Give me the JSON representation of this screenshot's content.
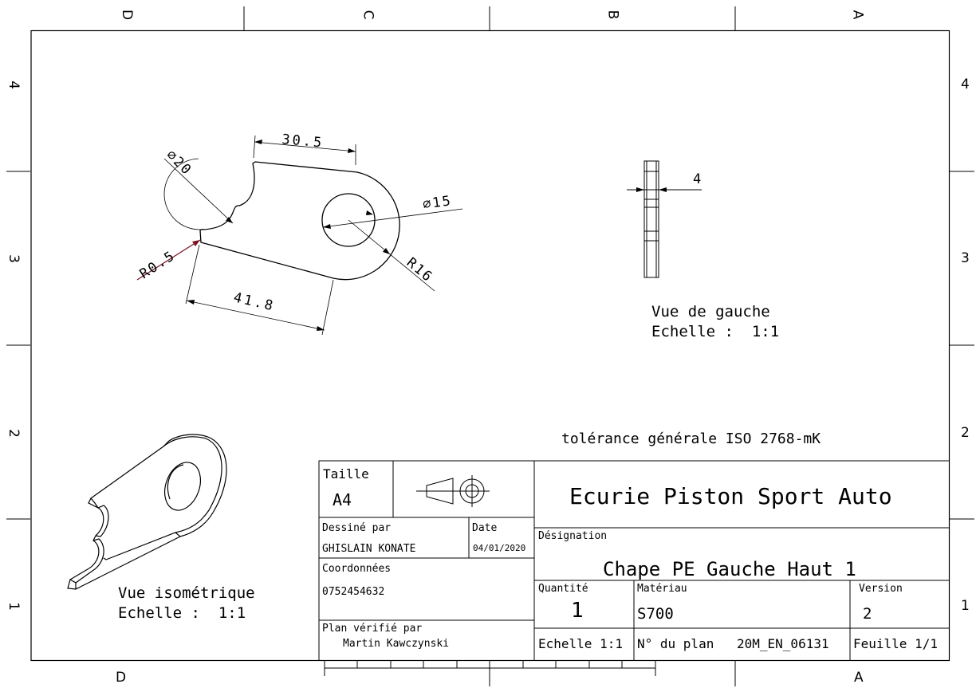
{
  "zones": {
    "columns_top": [
      "D",
      "C",
      "B",
      "A"
    ],
    "columns_bottom": [
      "D",
      "A"
    ],
    "rows_left": [
      "4",
      "3",
      "2",
      "1"
    ],
    "rows_right": [
      "4",
      "3",
      "2",
      "1"
    ]
  },
  "front_view": {
    "dims": {
      "width_top": "30.5",
      "diameter_notch": "⌀20",
      "diameter_hole": "⌀15",
      "fillet": "R0.5",
      "outer_radius": "R16",
      "width_bottom": "41.8"
    }
  },
  "left_view": {
    "thickness": "4",
    "caption_line1": "Vue de gauche",
    "caption_line2": "Echelle :  1:1"
  },
  "iso_view": {
    "caption_line1": "Vue isométrique",
    "caption_line2": "Echelle :  1:1"
  },
  "tolerance_note": "tolérance générale ISO 2768-mK",
  "title_block": {
    "size_label": "Taille",
    "size_value": "A4",
    "company": "Ecurie Piston Sport Auto",
    "drawn_by_label": "Dessiné par",
    "drawn_by_value": "GHISLAIN KONATE",
    "date_label": "Date",
    "date_value": "04/01/2020",
    "designation_label": "Désignation",
    "designation_value": "Chape PE Gauche Haut 1",
    "contact_label": "Coordonnées",
    "contact_value": "0752454632",
    "checked_by_label": "Plan vérifié par",
    "checked_by_value": "Martin Kawczynski",
    "quantity_label": "Quantité",
    "quantity_value": "1",
    "material_label": "Matériau",
    "material_value": "S700",
    "version_label": "Version",
    "version_value": "2",
    "scale": "Echelle 1:1",
    "plan_no_label": "N° du plan",
    "plan_no_value": "20M_EN_06131",
    "sheet": "Feuille 1/1"
  }
}
